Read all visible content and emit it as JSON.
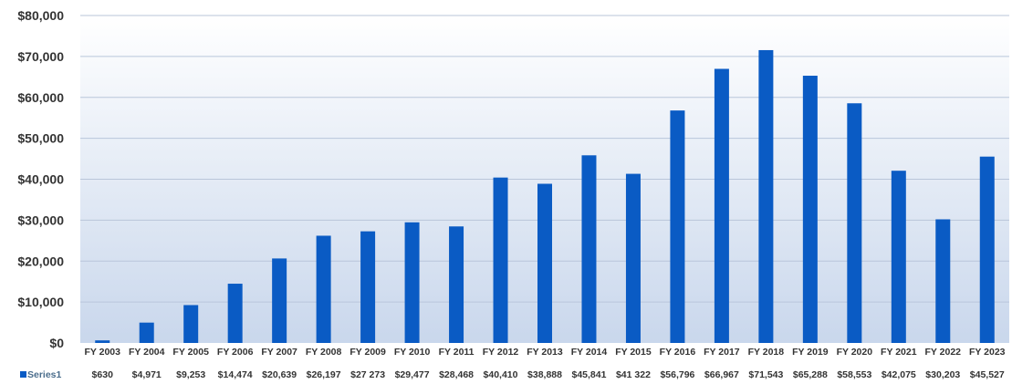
{
  "chart_data": {
    "type": "bar",
    "categories": [
      "FY 2003",
      "FY 2004",
      "FY 2005",
      "FY 2006",
      "FY 2007",
      "FY 2008",
      "FY 2009",
      "FY 2010",
      "FY 2011",
      "FY 2012",
      "FY 2013",
      "FY 2014",
      "FY 2015",
      "FY 2016",
      "FY 2017",
      "FY 2018",
      "FY 2019",
      "FY 2020",
      "FY 2021",
      "FY 2022",
      "FY 2023"
    ],
    "series": [
      {
        "name": "Series1",
        "values": [
          630,
          4971,
          9253,
          14474,
          20639,
          26197,
          27273,
          29477,
          28468,
          40410,
          38888,
          45841,
          41322,
          56796,
          66967,
          71543,
          65288,
          58553,
          42075,
          30203,
          45527
        ],
        "labels": [
          "$630",
          "$4,971",
          "$9,253",
          "$14,474",
          "$20,639",
          "$26,197",
          "$27 273",
          "$29,477",
          "$28,468",
          "$40,410",
          "$38,888",
          "$45,841",
          "$41 322",
          "$56,796",
          "$66,967",
          "$71,543",
          "$65,288",
          "$58,553",
          "$42,075",
          "$30,203",
          "$45,527"
        ]
      }
    ],
    "y_tick_labels": [
      "$0",
      "$10,000",
      "$20,000",
      "$30,000",
      "$40,000",
      "$50,000",
      "$60,000",
      "$70,000",
      "$80,000"
    ],
    "ylim": [
      0,
      80000
    ],
    "y_tick_step": 10000,
    "grid": true,
    "legend": "data-table-left",
    "bar_color": "#0a5bc4",
    "background_gradient": [
      "#ffffff",
      "#c9d7ec"
    ]
  }
}
